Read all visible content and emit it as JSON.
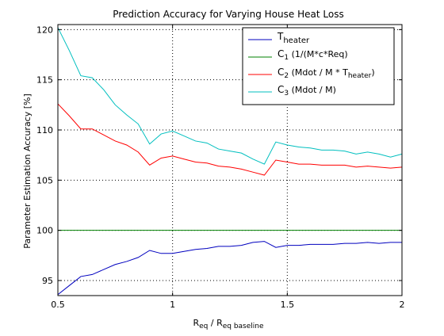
{
  "chart_data": {
    "type": "line",
    "title": "Prediction Accuracy for Varying House Heat Loss",
    "ylabel": "Parameter Estimation Accuracy [%]",
    "xlabel": {
      "main": "R",
      "sub1": "eq",
      "slash": " / R",
      "sub2": "eq baseline"
    },
    "xlim": [
      0.5,
      2
    ],
    "ylim": [
      93.5,
      120.5
    ],
    "grid": true,
    "grid_style": "dotted",
    "legend_position": "top-right",
    "x_ticks": [
      {
        "value": 0.5,
        "label": "0.5"
      },
      {
        "value": 1,
        "label": "1"
      },
      {
        "value": 1.5,
        "label": "1.5"
      },
      {
        "value": 2,
        "label": "2"
      }
    ],
    "y_ticks": [
      {
        "value": 95,
        "label": "95"
      },
      {
        "value": 100,
        "label": "100"
      },
      {
        "value": 105,
        "label": "105"
      },
      {
        "value": 110,
        "label": "110"
      },
      {
        "value": 115,
        "label": "115"
      },
      {
        "value": 120,
        "label": "120"
      }
    ],
    "series": [
      {
        "id": "t-heater",
        "color": "#0000bf",
        "legend": {
          "main": "T",
          "sub": "heater",
          "after": ""
        },
        "points": [
          [
            0.5,
            93.6
          ],
          [
            0.55,
            94.5
          ],
          [
            0.6,
            95.4
          ],
          [
            0.65,
            95.6
          ],
          [
            0.7,
            96.1
          ],
          [
            0.75,
            96.6
          ],
          [
            0.8,
            96.9
          ],
          [
            0.85,
            97.3
          ],
          [
            0.9,
            98.0
          ],
          [
            0.95,
            97.7
          ],
          [
            1.0,
            97.7
          ],
          [
            1.05,
            97.9
          ],
          [
            1.1,
            98.1
          ],
          [
            1.15,
            98.2
          ],
          [
            1.2,
            98.4
          ],
          [
            1.25,
            98.4
          ],
          [
            1.3,
            98.5
          ],
          [
            1.35,
            98.8
          ],
          [
            1.4,
            98.9
          ],
          [
            1.45,
            98.3
          ],
          [
            1.5,
            98.5
          ],
          [
            1.55,
            98.5
          ],
          [
            1.6,
            98.6
          ],
          [
            1.65,
            98.6
          ],
          [
            1.7,
            98.6
          ],
          [
            1.75,
            98.7
          ],
          [
            1.8,
            98.7
          ],
          [
            1.85,
            98.8
          ],
          [
            1.9,
            98.7
          ],
          [
            1.95,
            98.8
          ],
          [
            2.0,
            98.8
          ]
        ]
      },
      {
        "id": "c1",
        "color": "#008000",
        "legend": {
          "main": "C",
          "sub": "1",
          "after": " (1/(M*c*Req)"
        },
        "points": [
          [
            0.5,
            100.0
          ],
          [
            2.0,
            100.0
          ]
        ]
      },
      {
        "id": "c2",
        "color": "#ff0000",
        "legend": {
          "main": "C",
          "sub": "2",
          "after": " (Mdot / M * T",
          "after_sub": "heater",
          "after_end": ")"
        },
        "points": [
          [
            0.5,
            112.6
          ],
          [
            0.55,
            111.4
          ],
          [
            0.6,
            110.1
          ],
          [
            0.65,
            110.1
          ],
          [
            0.7,
            109.5
          ],
          [
            0.75,
            108.9
          ],
          [
            0.8,
            108.5
          ],
          [
            0.85,
            107.8
          ],
          [
            0.9,
            106.5
          ],
          [
            0.95,
            107.2
          ],
          [
            1.0,
            107.4
          ],
          [
            1.05,
            107.1
          ],
          [
            1.1,
            106.8
          ],
          [
            1.15,
            106.7
          ],
          [
            1.2,
            106.4
          ],
          [
            1.25,
            106.3
          ],
          [
            1.3,
            106.1
          ],
          [
            1.35,
            105.8
          ],
          [
            1.4,
            105.5
          ],
          [
            1.45,
            107.0
          ],
          [
            1.5,
            106.8
          ],
          [
            1.55,
            106.6
          ],
          [
            1.6,
            106.6
          ],
          [
            1.65,
            106.5
          ],
          [
            1.7,
            106.5
          ],
          [
            1.75,
            106.5
          ],
          [
            1.8,
            106.3
          ],
          [
            1.85,
            106.4
          ],
          [
            1.9,
            106.3
          ],
          [
            1.95,
            106.2
          ],
          [
            2.0,
            106.3
          ]
        ]
      },
      {
        "id": "c3",
        "color": "#00bfbf",
        "legend": {
          "main": "C",
          "sub": "3",
          "after": " (Mdot / M)"
        },
        "points": [
          [
            0.5,
            120.2
          ],
          [
            0.55,
            117.9
          ],
          [
            0.6,
            115.4
          ],
          [
            0.65,
            115.2
          ],
          [
            0.7,
            114.0
          ],
          [
            0.75,
            112.5
          ],
          [
            0.8,
            111.5
          ],
          [
            0.85,
            110.6
          ],
          [
            0.9,
            108.6
          ],
          [
            0.95,
            109.6
          ],
          [
            1.0,
            109.9
          ],
          [
            1.05,
            109.4
          ],
          [
            1.1,
            108.9
          ],
          [
            1.15,
            108.7
          ],
          [
            1.2,
            108.1
          ],
          [
            1.25,
            107.9
          ],
          [
            1.3,
            107.7
          ],
          [
            1.35,
            107.1
          ],
          [
            1.4,
            106.6
          ],
          [
            1.45,
            108.8
          ],
          [
            1.5,
            108.5
          ],
          [
            1.55,
            108.3
          ],
          [
            1.6,
            108.2
          ],
          [
            1.65,
            108.0
          ],
          [
            1.7,
            108.0
          ],
          [
            1.75,
            107.9
          ],
          [
            1.8,
            107.6
          ],
          [
            1.85,
            107.8
          ],
          [
            1.9,
            107.6
          ],
          [
            1.95,
            107.3
          ],
          [
            2.0,
            107.6
          ]
        ]
      }
    ]
  }
}
